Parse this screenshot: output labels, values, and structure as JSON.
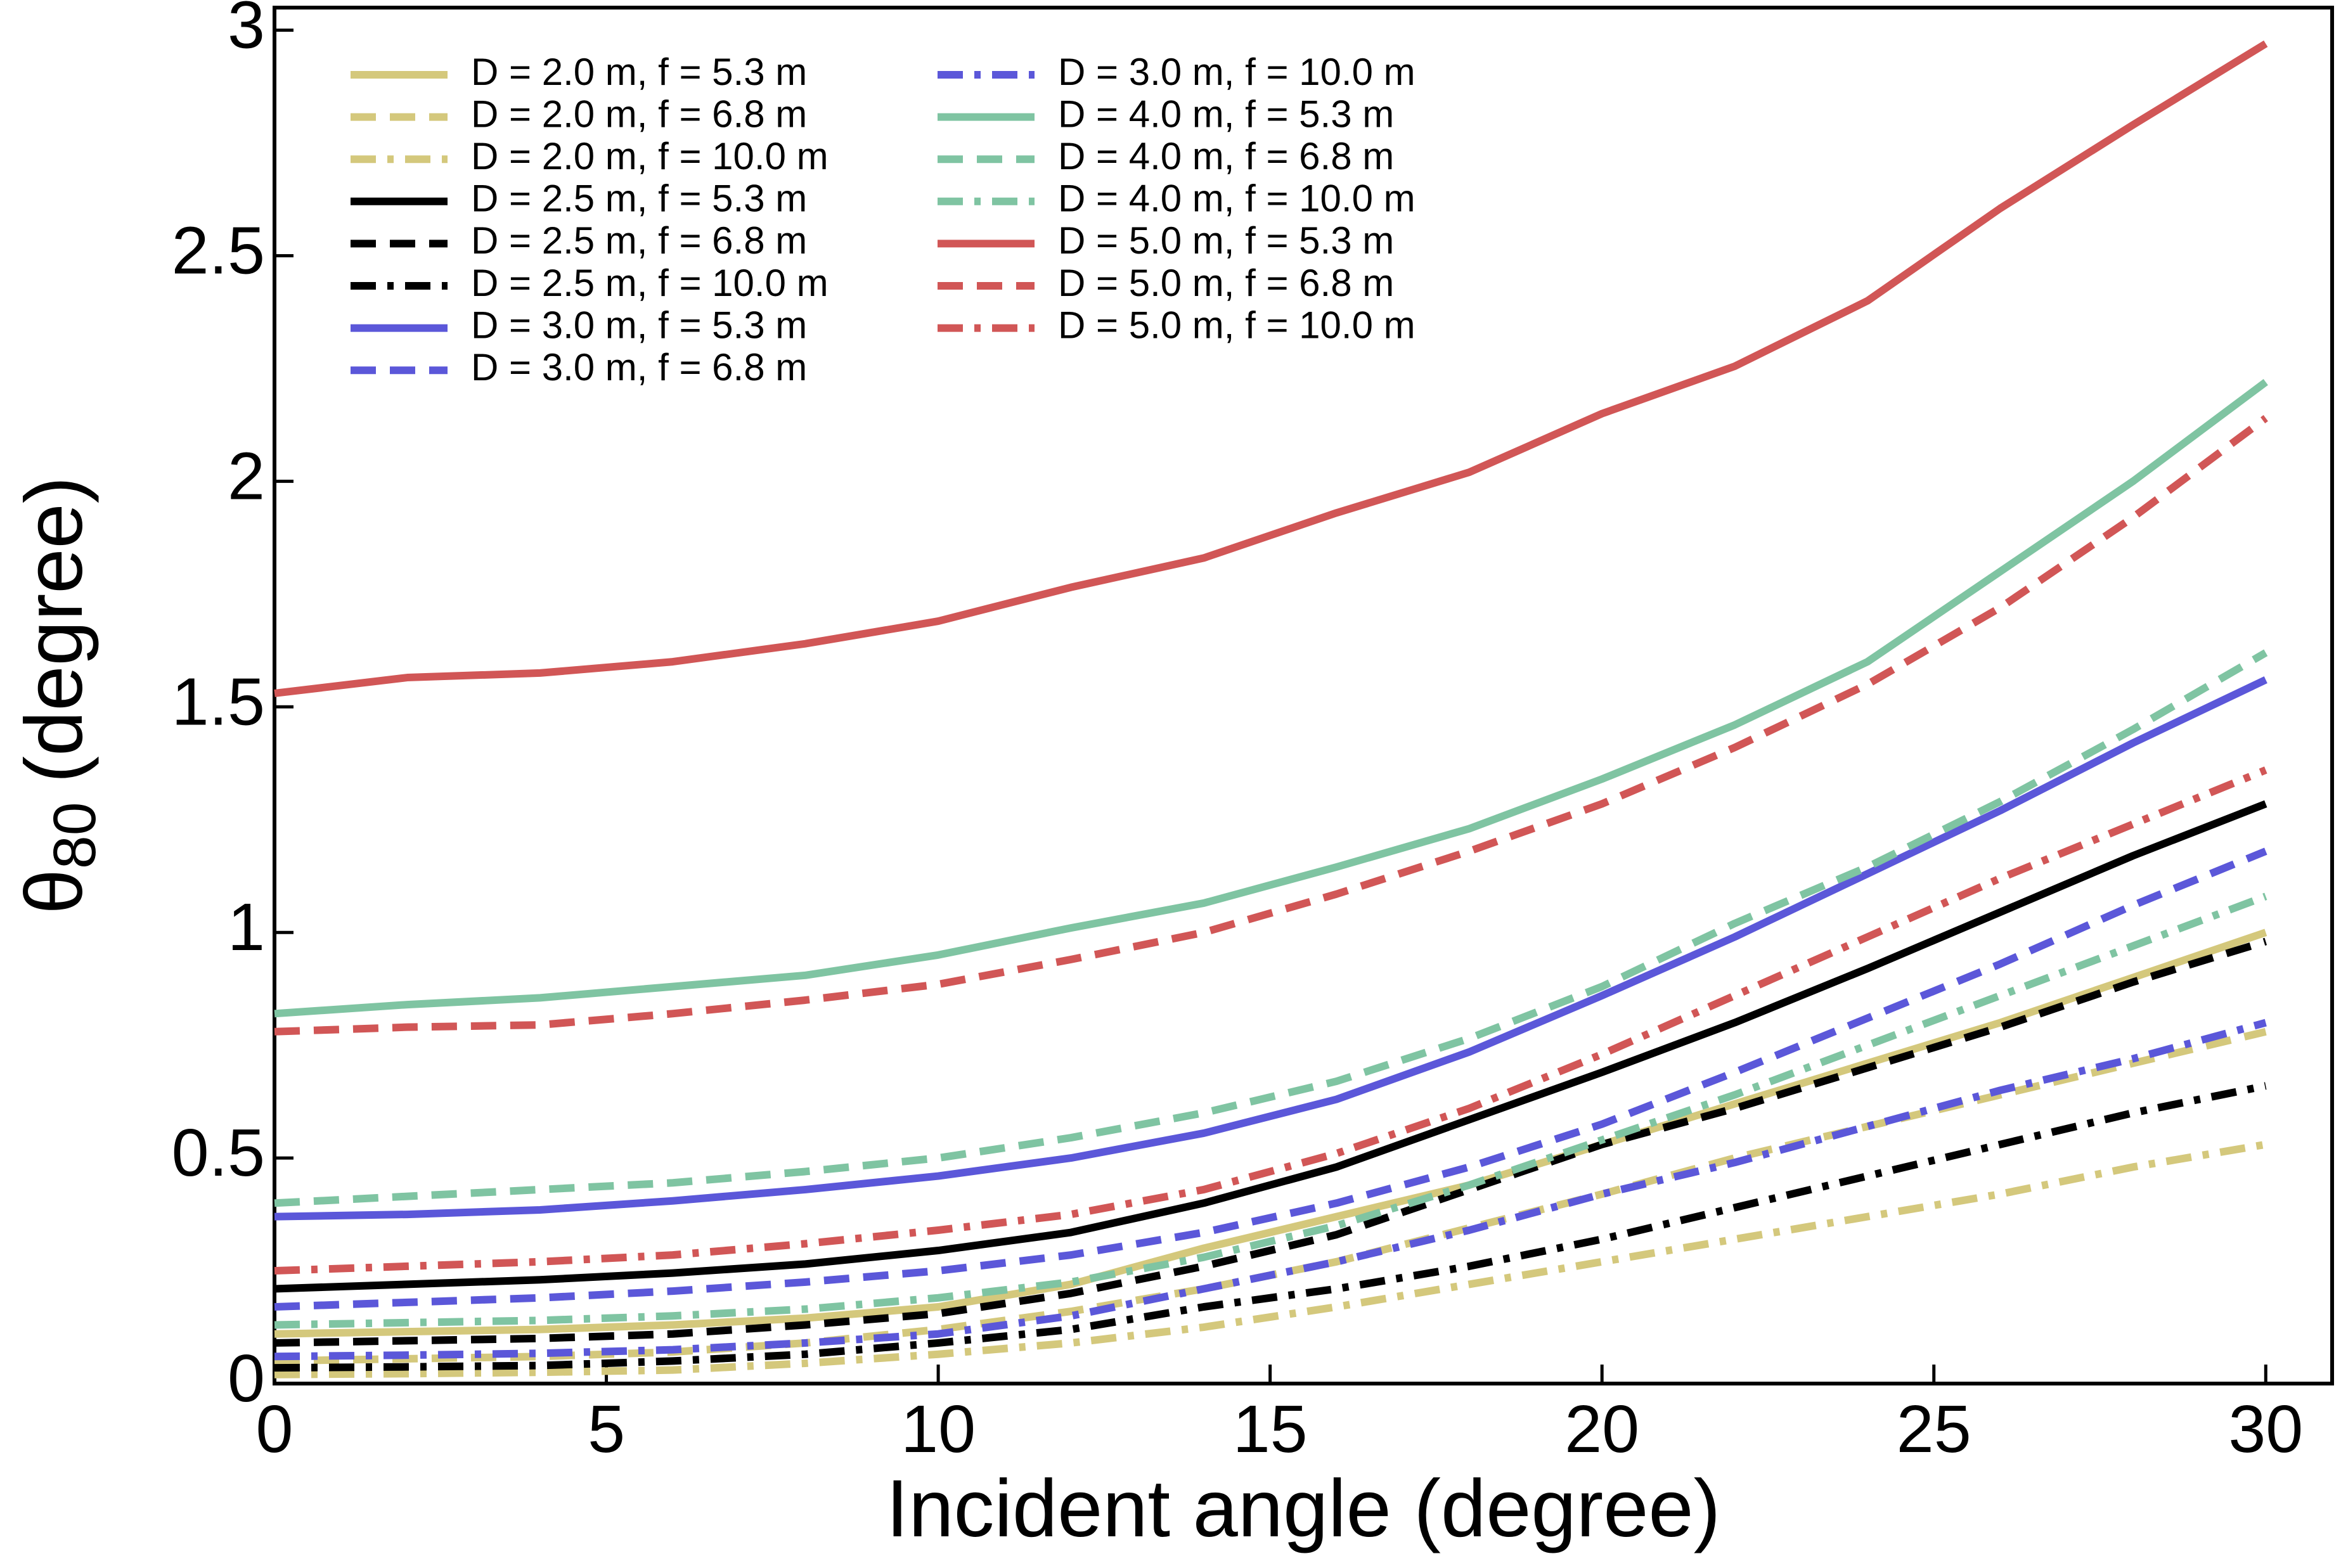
{
  "chart_data": {
    "type": "line",
    "xlabel": "Incident angle (degree)",
    "ylabel": [
      "θ",
      "80",
      "(degree)"
    ],
    "x": [
      0,
      2,
      4,
      6,
      8,
      10,
      12,
      14,
      16,
      18,
      20,
      22,
      24,
      26,
      28,
      30
    ],
    "xlim": [
      0,
      31
    ],
    "xticks": [
      0,
      5,
      10,
      15,
      20,
      25,
      30
    ],
    "ylim": [
      0,
      3.05
    ],
    "yticks": [
      0,
      0.5,
      1,
      1.5,
      2,
      2.5,
      3
    ],
    "legend": "upper-left",
    "series": [
      {
        "name": "D = 2.0 m, f = 5.3 m",
        "color": "#d4c87c",
        "dash": "solid",
        "values": [
          0.11,
          0.115,
          0.12,
          0.13,
          0.145,
          0.17,
          0.22,
          0.3,
          0.37,
          0.44,
          0.53,
          0.62,
          0.71,
          0.8,
          0.9,
          1.0
        ]
      },
      {
        "name": "D = 2.0 m, f = 6.8 m",
        "color": "#d4c87c",
        "dash": "dashed",
        "values": [
          0.05,
          0.055,
          0.06,
          0.07,
          0.09,
          0.12,
          0.16,
          0.21,
          0.27,
          0.345,
          0.42,
          0.5,
          0.57,
          0.64,
          0.71,
          0.78
        ]
      },
      {
        "name": "D = 2.0 m, f = 10.0 m",
        "color": "#d4c87c",
        "dash": "dashdot",
        "values": [
          0.02,
          0.022,
          0.025,
          0.03,
          0.045,
          0.065,
          0.09,
          0.125,
          0.17,
          0.22,
          0.27,
          0.32,
          0.37,
          0.42,
          0.48,
          0.53
        ]
      },
      {
        "name": "D = 2.5 m, f = 5.3 m",
        "color": "#000000",
        "dash": "solid",
        "values": [
          0.21,
          0.22,
          0.23,
          0.245,
          0.265,
          0.295,
          0.335,
          0.4,
          0.48,
          0.585,
          0.69,
          0.8,
          0.92,
          1.045,
          1.17,
          1.285
        ]
      },
      {
        "name": "D = 2.5 m, f = 6.8 m",
        "color": "#000000",
        "dash": "dashed",
        "values": [
          0.09,
          0.095,
          0.1,
          0.11,
          0.13,
          0.155,
          0.2,
          0.26,
          0.33,
          0.43,
          0.53,
          0.61,
          0.7,
          0.79,
          0.89,
          0.98
        ]
      },
      {
        "name": "D = 2.5 m, f = 10.0 m",
        "color": "#000000",
        "dash": "dashdot",
        "values": [
          0.035,
          0.037,
          0.04,
          0.05,
          0.065,
          0.09,
          0.12,
          0.17,
          0.21,
          0.26,
          0.32,
          0.39,
          0.46,
          0.53,
          0.6,
          0.66
        ]
      },
      {
        "name": "D = 3.0 m, f = 5.3 m",
        "color": "#5b57d9",
        "dash": "solid",
        "values": [
          0.37,
          0.375,
          0.385,
          0.405,
          0.43,
          0.46,
          0.5,
          0.555,
          0.63,
          0.735,
          0.86,
          0.99,
          1.13,
          1.27,
          1.42,
          1.56
        ]
      },
      {
        "name": "D = 3.0 m, f = 6.8 m",
        "color": "#5b57d9",
        "dash": "dashed",
        "values": [
          0.17,
          0.18,
          0.19,
          0.205,
          0.225,
          0.25,
          0.285,
          0.335,
          0.4,
          0.48,
          0.575,
          0.69,
          0.81,
          0.93,
          1.06,
          1.18
        ]
      },
      {
        "name": "D = 3.0 m, f = 10.0 m",
        "color": "#5b57d9",
        "dash": "dashdot",
        "values": [
          0.06,
          0.063,
          0.067,
          0.075,
          0.09,
          0.11,
          0.15,
          0.21,
          0.27,
          0.34,
          0.42,
          0.49,
          0.57,
          0.65,
          0.72,
          0.8
        ]
      },
      {
        "name": "D = 4.0 m, f = 5.3 m",
        "color": "#7fc4a2",
        "dash": "solid",
        "values": [
          0.82,
          0.84,
          0.855,
          0.88,
          0.905,
          0.95,
          1.01,
          1.065,
          1.145,
          1.23,
          1.34,
          1.46,
          1.6,
          1.8,
          2.0,
          2.22
        ]
      },
      {
        "name": "D = 4.0 m, f = 6.8 m",
        "color": "#7fc4a2",
        "dash": "dashed",
        "values": [
          0.4,
          0.415,
          0.43,
          0.445,
          0.47,
          0.5,
          0.545,
          0.6,
          0.67,
          0.765,
          0.88,
          1.02,
          1.145,
          1.29,
          1.45,
          1.62
        ]
      },
      {
        "name": "D = 4.0 m, f = 10.0 m",
        "color": "#7fc4a2",
        "dash": "dashdot",
        "values": [
          0.13,
          0.135,
          0.14,
          0.15,
          0.165,
          0.19,
          0.225,
          0.28,
          0.35,
          0.44,
          0.54,
          0.64,
          0.75,
          0.86,
          0.97,
          1.08
        ]
      },
      {
        "name": "D = 5.0 m, f = 5.3 m",
        "color": "#d15656",
        "dash": "solid",
        "values": [
          1.53,
          1.565,
          1.575,
          1.6,
          1.64,
          1.69,
          1.765,
          1.83,
          1.93,
          2.02,
          2.15,
          2.255,
          2.4,
          2.605,
          2.79,
          2.97
        ]
      },
      {
        "name": "D = 5.0 m, f = 6.8 m",
        "color": "#d15656",
        "dash": "dashed",
        "values": [
          0.78,
          0.79,
          0.795,
          0.82,
          0.85,
          0.885,
          0.94,
          1.0,
          1.085,
          1.18,
          1.285,
          1.41,
          1.55,
          1.72,
          1.92,
          2.14
        ]
      },
      {
        "name": "D = 5.0 m, f = 10.0 m",
        "color": "#d15656",
        "dash": "dashdot",
        "values": [
          0.25,
          0.26,
          0.27,
          0.285,
          0.31,
          0.34,
          0.375,
          0.43,
          0.51,
          0.61,
          0.73,
          0.86,
          0.99,
          1.12,
          1.24,
          1.36
        ]
      }
    ]
  }
}
